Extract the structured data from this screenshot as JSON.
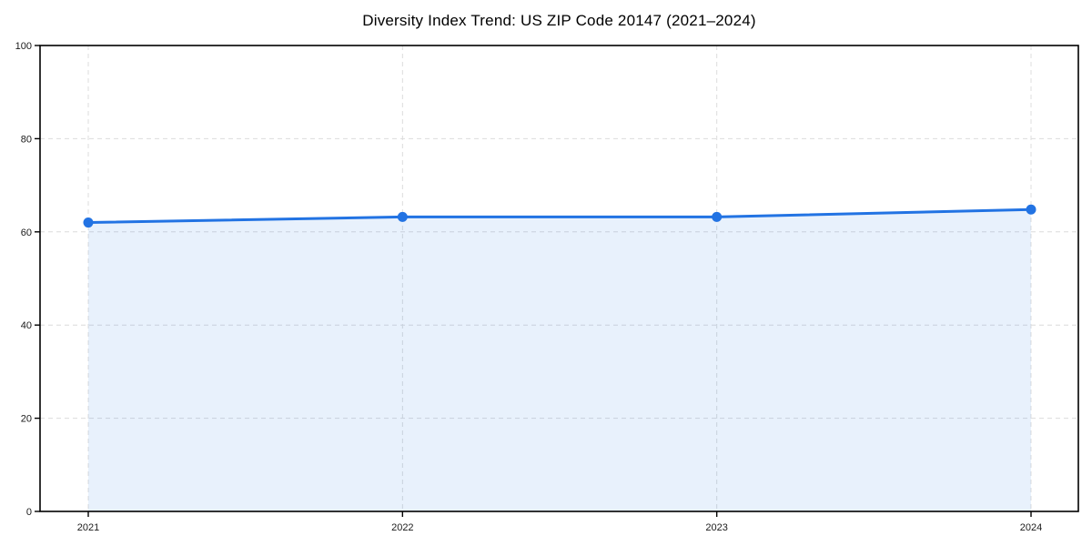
{
  "chart_data": {
    "type": "area",
    "title": "Diversity Index Trend: US ZIP Code 20147 (2021–2024)",
    "categories": [
      "2021",
      "2022",
      "2023",
      "2024"
    ],
    "series": [
      {
        "name": "Diversity Index",
        "values": [
          62.0,
          63.2,
          63.2,
          64.8
        ]
      }
    ],
    "xlabel": "",
    "ylabel": "",
    "ylim": [
      0,
      100
    ],
    "yticks": [
      0,
      20,
      40,
      60,
      80,
      100
    ],
    "grid": {
      "show": true,
      "style": "dashed",
      "horizontal_ticks": [
        20,
        40,
        60,
        80
      ],
      "vertical_at_each_category": true
    },
    "legend": {
      "show": false,
      "position": "none"
    },
    "marker": "circle",
    "line_width": 3,
    "marker_radius": 5.5,
    "colors": {
      "line": "#2273e3",
      "marker": "#2273e3",
      "fill": "rgba(34,115,227,0.10)",
      "grid": "#dcdcdc",
      "axis": "#000000",
      "tick_label": "#1a1a1a",
      "title": "#000000",
      "background": "#ffffff"
    }
  }
}
